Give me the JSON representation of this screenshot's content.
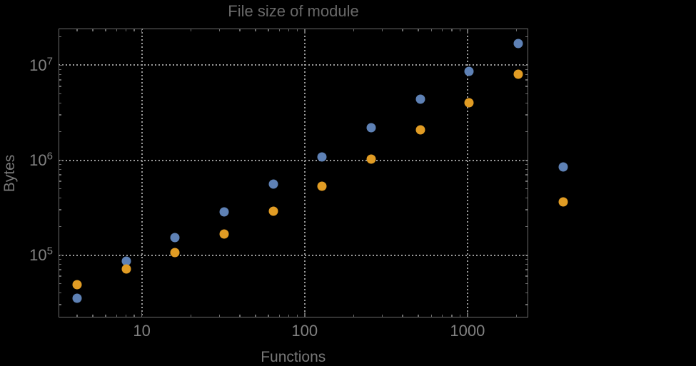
{
  "title": "File size of module",
  "colors": {
    "background": "#000000",
    "frame": "#6b6b6b",
    "grid": "#9a9a9a",
    "tick_label": "#818181",
    "axis_label": "#787878",
    "title": "#696969",
    "series_blue": "#5e81b5",
    "series_orange": "#e19c24"
  },
  "chart_data": {
    "type": "scatter",
    "title": "File size of module",
    "xlabel": "Functions",
    "ylabel": "Bytes",
    "x_scale": "log",
    "y_scale": "log",
    "x_range": [
      3.08,
      2349
    ],
    "y_range": [
      22180,
      24600000
    ],
    "grid": "dotted lines at major ticks only",
    "legend": "none",
    "x_major_ticks": [
      {
        "value": 10,
        "label": "10"
      },
      {
        "value": 100,
        "label": "100"
      },
      {
        "value": 1000,
        "label": "1000"
      }
    ],
    "y_major_ticks": [
      {
        "value": 100000,
        "label": "10^5"
      },
      {
        "value": 1000000,
        "label": "10^6"
      },
      {
        "value": 10000000,
        "label": "10^7"
      }
    ],
    "x": [
      4,
      8,
      16,
      32,
      64,
      128,
      256,
      512,
      1024,
      2048,
      3860
    ],
    "series": [
      {
        "name": "blue",
        "color": "#5e81b5",
        "values": [
          35000,
          87000,
          152000,
          286000,
          557000,
          1090000,
          2190000,
          4370000,
          8600000,
          17000000,
          844000
        ]
      },
      {
        "name": "orange",
        "color": "#e19c24",
        "values": [
          49000,
          71000,
          107000,
          168000,
          292000,
          534000,
          1020000,
          2090000,
          4050000,
          8050000,
          361000
        ]
      }
    ],
    "note": "last pair of points (x≈3860) lies outside the right edge of the plot frame"
  }
}
